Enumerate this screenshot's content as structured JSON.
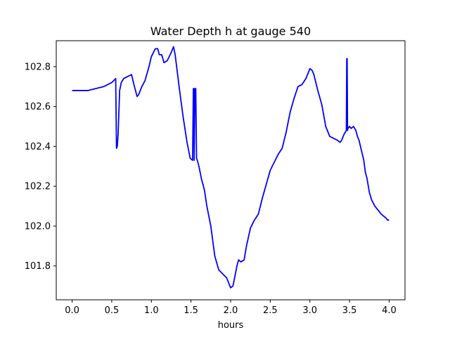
{
  "chart_data": {
    "type": "line",
    "title": "Water Depth h at gauge 540",
    "xlabel": "hours",
    "ylabel": "",
    "xlim": [
      -0.2,
      4.2
    ],
    "ylim": [
      101.63,
      102.93
    ],
    "x_ticks": [
      0.0,
      0.5,
      1.0,
      1.5,
      2.0,
      2.5,
      3.0,
      3.5,
      4.0
    ],
    "x_tick_labels": [
      "0.0",
      "0.5",
      "1.0",
      "1.5",
      "2.0",
      "2.5",
      "3.0",
      "3.5",
      "4.0"
    ],
    "y_ticks": [
      101.8,
      102.0,
      102.2,
      102.4,
      102.6,
      102.8
    ],
    "y_tick_labels": [
      "101.8",
      "102.0",
      "102.2",
      "102.4",
      "102.6",
      "102.8"
    ],
    "grid": false,
    "colors": {
      "line": "#0000ff",
      "axes": "#000000",
      "background": "#ffffff"
    },
    "series": [
      {
        "x": [
          0.0,
          0.1,
          0.2,
          0.3,
          0.4,
          0.5,
          0.55,
          0.56,
          0.57,
          0.58,
          0.6,
          0.62,
          0.65,
          0.7,
          0.75,
          0.78,
          0.82,
          0.84,
          0.88,
          0.92,
          0.97,
          1.0,
          1.05,
          1.08,
          1.1,
          1.13,
          1.16,
          1.2,
          1.25,
          1.28,
          1.3,
          1.35,
          1.4,
          1.45,
          1.49,
          1.52,
          1.53,
          1.535,
          1.54,
          1.55,
          1.56,
          1.57,
          1.58,
          1.6,
          1.63,
          1.67,
          1.7,
          1.75,
          1.8,
          1.85,
          1.9,
          1.95,
          2.0,
          2.03,
          2.05,
          2.08,
          2.1,
          2.13,
          2.17,
          2.2,
          2.25,
          2.3,
          2.35,
          2.4,
          2.45,
          2.5,
          2.55,
          2.6,
          2.65,
          2.7,
          2.75,
          2.8,
          2.85,
          2.9,
          2.95,
          3.0,
          3.03,
          3.05,
          3.1,
          3.15,
          3.2,
          3.25,
          3.3,
          3.35,
          3.38,
          3.4,
          3.43,
          3.46,
          3.465,
          3.47,
          3.475,
          3.48,
          3.5,
          3.52,
          3.55,
          3.58,
          3.6,
          3.62,
          3.65,
          3.68,
          3.7,
          3.72,
          3.75,
          3.78,
          3.82,
          3.86,
          3.9,
          3.93,
          3.96,
          3.98,
          4.0
        ],
        "y": [
          102.68,
          102.68,
          102.68,
          102.69,
          102.7,
          102.72,
          102.74,
          102.39,
          102.4,
          102.46,
          102.68,
          102.72,
          102.74,
          102.75,
          102.76,
          102.71,
          102.65,
          102.66,
          102.7,
          102.73,
          102.8,
          102.85,
          102.89,
          102.89,
          102.86,
          102.86,
          102.82,
          102.83,
          102.87,
          102.9,
          102.86,
          102.7,
          102.55,
          102.42,
          102.34,
          102.33,
          102.69,
          102.69,
          102.33,
          102.69,
          102.69,
          102.34,
          102.33,
          102.3,
          102.24,
          102.18,
          102.1,
          102.0,
          101.85,
          101.78,
          101.76,
          101.74,
          101.69,
          101.7,
          101.74,
          101.8,
          101.83,
          101.82,
          101.83,
          101.9,
          101.99,
          102.03,
          102.06,
          102.14,
          102.21,
          102.28,
          102.32,
          102.36,
          102.39,
          102.47,
          102.57,
          102.64,
          102.7,
          102.71,
          102.74,
          102.79,
          102.78,
          102.76,
          102.68,
          102.61,
          102.5,
          102.45,
          102.44,
          102.43,
          102.42,
          102.43,
          102.46,
          102.48,
          102.84,
          102.84,
          102.48,
          102.49,
          102.5,
          102.49,
          102.5,
          102.48,
          102.45,
          102.43,
          102.38,
          102.33,
          102.27,
          102.24,
          102.17,
          102.13,
          102.1,
          102.08,
          102.06,
          102.05,
          102.04,
          102.03,
          102.03
        ]
      }
    ]
  }
}
